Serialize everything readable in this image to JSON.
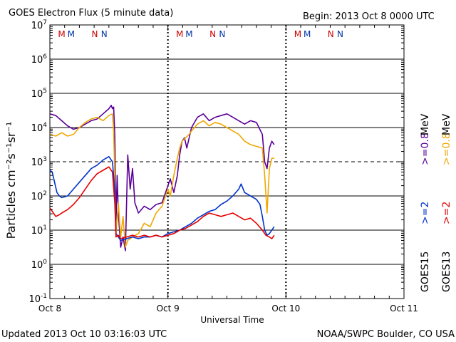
{
  "header": {
    "title": "GOES Electron Flux (5 minute data)",
    "begin": "Begin: 2013 Oct 8 0000 UTC"
  },
  "footer": {
    "updated": "Updated 2013 Oct 10 03:16:03 UTC",
    "credit": "NOAA/SWPC Boulder, CO USA"
  },
  "colors": {
    "goes15_08": "#5a0096",
    "goes13_08": "#f0a800",
    "goes15_2": "#0033cc",
    "goes13_2": "#e60000",
    "marker_m": "#cc0000",
    "marker_n_red": "#cc0000",
    "marker_n_blue": "#0033aa"
  },
  "markers": [
    {
      "day": 0.1,
      "letter": "M",
      "color": "red"
    },
    {
      "day": 0.18,
      "letter": "M",
      "color": "blue"
    },
    {
      "day": 0.38,
      "letter": "N",
      "color": "red"
    },
    {
      "day": 0.46,
      "letter": "N",
      "color": "blue"
    },
    {
      "day": 1.1,
      "letter": "M",
      "color": "red"
    },
    {
      "day": 1.18,
      "letter": "M",
      "color": "blue"
    },
    {
      "day": 1.38,
      "letter": "N",
      "color": "red"
    },
    {
      "day": 1.46,
      "letter": "N",
      "color": "blue"
    },
    {
      "day": 2.1,
      "letter": "M",
      "color": "red"
    },
    {
      "day": 2.18,
      "letter": "M",
      "color": "blue"
    },
    {
      "day": 2.38,
      "letter": "N",
      "color": "red"
    },
    {
      "day": 2.46,
      "letter": "N",
      "color": "blue"
    }
  ],
  "right_labels": {
    "goes15": "GOES15",
    "goes13": "GOES13",
    "ge2_15": ">=2",
    "ge2_13": ">=2",
    "ge08_15": ">=0.8",
    "ge08_13": ">=0.8",
    "mev": "MeV"
  },
  "chart_data": {
    "type": "line",
    "xlabel": "Universal Time",
    "ylabel": "Particles cm⁻²s⁻¹sr⁻¹",
    "x_unit": "days since 2013 Oct 8 0000 UTC",
    "xlim": [
      0,
      3
    ],
    "ylim_log10": [
      -1,
      7
    ],
    "y_scale": "log",
    "x_ticks": [
      {
        "at": 0,
        "label": "Oct 8"
      },
      {
        "at": 1,
        "label": "Oct 9"
      },
      {
        "at": 2,
        "label": "Oct 10"
      },
      {
        "at": 3,
        "label": "Oct 11"
      }
    ],
    "y_ticks": [
      {
        "exp": 7,
        "label": "10^7"
      },
      {
        "exp": 6,
        "label": "10^6"
      },
      {
        "exp": 5,
        "label": "10^5"
      },
      {
        "exp": 4,
        "label": "10^4"
      },
      {
        "exp": 3,
        "label": "10^3"
      },
      {
        "exp": 2,
        "label": "10^2"
      },
      {
        "exp": 1,
        "label": "10^1"
      },
      {
        "exp": 0,
        "label": "10^0"
      },
      {
        "exp": -1,
        "label": "10^-1"
      }
    ],
    "reference_dashed_log10": 3,
    "series": [
      {
        "name": "GOES15 >=0.8 MeV",
        "color": "#5a0096",
        "points": [
          [
            0.0,
            4.4
          ],
          [
            0.05,
            4.35
          ],
          [
            0.1,
            4.2
          ],
          [
            0.15,
            4.05
          ],
          [
            0.2,
            3.95
          ],
          [
            0.25,
            4.0
          ],
          [
            0.3,
            4.1
          ],
          [
            0.35,
            4.2
          ],
          [
            0.4,
            4.25
          ],
          [
            0.45,
            4.4
          ],
          [
            0.5,
            4.55
          ],
          [
            0.52,
            4.65
          ],
          [
            0.53,
            4.55
          ],
          [
            0.54,
            4.6
          ],
          [
            0.55,
            3.8
          ],
          [
            0.56,
            1.2
          ],
          [
            0.57,
            2.6
          ],
          [
            0.58,
            1.5
          ],
          [
            0.6,
            0.5
          ],
          [
            0.62,
            0.8
          ],
          [
            0.64,
            0.4
          ],
          [
            0.66,
            3.2
          ],
          [
            0.68,
            2.2
          ],
          [
            0.7,
            2.8
          ],
          [
            0.72,
            1.8
          ],
          [
            0.75,
            1.5
          ],
          [
            0.8,
            1.7
          ],
          [
            0.85,
            1.6
          ],
          [
            0.9,
            1.75
          ],
          [
            0.95,
            1.8
          ],
          [
            1.0,
            2.3
          ],
          [
            1.02,
            2.5
          ],
          [
            1.05,
            2.1
          ],
          [
            1.08,
            2.6
          ],
          [
            1.1,
            3.2
          ],
          [
            1.12,
            3.6
          ],
          [
            1.14,
            3.7
          ],
          [
            1.16,
            3.4
          ],
          [
            1.2,
            4.0
          ],
          [
            1.25,
            4.3
          ],
          [
            1.3,
            4.4
          ],
          [
            1.35,
            4.2
          ],
          [
            1.4,
            4.3
          ],
          [
            1.45,
            4.35
          ],
          [
            1.5,
            4.4
          ],
          [
            1.55,
            4.3
          ],
          [
            1.6,
            4.2
          ],
          [
            1.65,
            4.1
          ],
          [
            1.7,
            4.2
          ],
          [
            1.75,
            4.15
          ],
          [
            1.8,
            3.8
          ],
          [
            1.82,
            3.0
          ],
          [
            1.84,
            2.8
          ],
          [
            1.86,
            3.4
          ],
          [
            1.88,
            3.6
          ],
          [
            1.9,
            3.5
          ]
        ]
      },
      {
        "name": "GOES13 >=0.8 MeV",
        "color": "#f0a800",
        "points": [
          [
            0.0,
            3.8
          ],
          [
            0.05,
            3.75
          ],
          [
            0.1,
            3.85
          ],
          [
            0.15,
            3.75
          ],
          [
            0.2,
            3.8
          ],
          [
            0.25,
            4.0
          ],
          [
            0.3,
            4.15
          ],
          [
            0.35,
            4.25
          ],
          [
            0.4,
            4.3
          ],
          [
            0.45,
            4.2
          ],
          [
            0.5,
            4.35
          ],
          [
            0.53,
            4.4
          ],
          [
            0.54,
            3.9
          ],
          [
            0.55,
            2.6
          ],
          [
            0.56,
            0.9
          ],
          [
            0.58,
            1.8
          ],
          [
            0.6,
            0.8
          ],
          [
            0.62,
            1.4
          ],
          [
            0.64,
            0.5
          ],
          [
            0.66,
            0.7
          ],
          [
            0.7,
            0.8
          ],
          [
            0.75,
            0.9
          ],
          [
            0.8,
            1.2
          ],
          [
            0.85,
            1.1
          ],
          [
            0.9,
            1.5
          ],
          [
            0.95,
            1.7
          ],
          [
            1.0,
            2.2
          ],
          [
            1.02,
            2.0
          ],
          [
            1.05,
            2.6
          ],
          [
            1.08,
            3.1
          ],
          [
            1.1,
            3.4
          ],
          [
            1.12,
            3.6
          ],
          [
            1.15,
            3.7
          ],
          [
            1.18,
            3.8
          ],
          [
            1.2,
            3.9
          ],
          [
            1.25,
            4.1
          ],
          [
            1.3,
            4.2
          ],
          [
            1.35,
            4.05
          ],
          [
            1.4,
            4.15
          ],
          [
            1.45,
            4.1
          ],
          [
            1.5,
            4.0
          ],
          [
            1.55,
            3.9
          ],
          [
            1.6,
            3.8
          ],
          [
            1.65,
            3.6
          ],
          [
            1.7,
            3.5
          ],
          [
            1.75,
            3.45
          ],
          [
            1.8,
            3.4
          ],
          [
            1.82,
            2.6
          ],
          [
            1.84,
            1.5
          ],
          [
            1.86,
            2.8
          ],
          [
            1.88,
            3.1
          ],
          [
            1.9,
            3.1
          ]
        ]
      },
      {
        "name": "GOES15 >=2 MeV",
        "color": "#0033cc",
        "points": [
          [
            0.0,
            2.75
          ],
          [
            0.02,
            2.7
          ],
          [
            0.04,
            2.4
          ],
          [
            0.06,
            2.1
          ],
          [
            0.08,
            2.0
          ],
          [
            0.1,
            1.95
          ],
          [
            0.15,
            2.0
          ],
          [
            0.2,
            2.2
          ],
          [
            0.25,
            2.4
          ],
          [
            0.3,
            2.6
          ],
          [
            0.35,
            2.8
          ],
          [
            0.4,
            2.9
          ],
          [
            0.45,
            3.05
          ],
          [
            0.5,
            3.15
          ],
          [
            0.53,
            3.0
          ],
          [
            0.55,
            2.2
          ],
          [
            0.56,
            0.9
          ],
          [
            0.58,
            0.8
          ],
          [
            0.6,
            0.7
          ],
          [
            0.65,
            0.75
          ],
          [
            0.7,
            0.8
          ],
          [
            0.75,
            0.75
          ],
          [
            0.8,
            0.8
          ],
          [
            0.85,
            0.8
          ],
          [
            0.9,
            0.85
          ],
          [
            0.95,
            0.8
          ],
          [
            1.0,
            0.9
          ],
          [
            1.05,
            0.95
          ],
          [
            1.1,
            1.0
          ],
          [
            1.15,
            1.1
          ],
          [
            1.2,
            1.2
          ],
          [
            1.25,
            1.35
          ],
          [
            1.3,
            1.45
          ],
          [
            1.35,
            1.55
          ],
          [
            1.4,
            1.6
          ],
          [
            1.45,
            1.75
          ],
          [
            1.5,
            1.85
          ],
          [
            1.55,
            2.0
          ],
          [
            1.6,
            2.2
          ],
          [
            1.62,
            2.35
          ],
          [
            1.65,
            2.1
          ],
          [
            1.7,
            2.0
          ],
          [
            1.75,
            1.9
          ],
          [
            1.78,
            1.75
          ],
          [
            1.8,
            1.4
          ],
          [
            1.82,
            1.0
          ],
          [
            1.84,
            0.85
          ],
          [
            1.86,
            0.9
          ],
          [
            1.88,
            1.0
          ],
          [
            1.9,
            1.1
          ]
        ]
      },
      {
        "name": "GOES13 >=2 MeV",
        "color": "#e60000",
        "points": [
          [
            0.0,
            1.65
          ],
          [
            0.03,
            1.5
          ],
          [
            0.05,
            1.4
          ],
          [
            0.08,
            1.45
          ],
          [
            0.1,
            1.5
          ],
          [
            0.15,
            1.6
          ],
          [
            0.2,
            1.75
          ],
          [
            0.25,
            1.95
          ],
          [
            0.3,
            2.2
          ],
          [
            0.35,
            2.45
          ],
          [
            0.4,
            2.65
          ],
          [
            0.45,
            2.75
          ],
          [
            0.5,
            2.85
          ],
          [
            0.53,
            2.7
          ],
          [
            0.55,
            1.8
          ],
          [
            0.56,
            0.8
          ],
          [
            0.58,
            0.85
          ],
          [
            0.6,
            0.75
          ],
          [
            0.65,
            0.8
          ],
          [
            0.7,
            0.85
          ],
          [
            0.75,
            0.8
          ],
          [
            0.8,
            0.85
          ],
          [
            0.85,
            0.8
          ],
          [
            0.9,
            0.85
          ],
          [
            0.95,
            0.8
          ],
          [
            1.0,
            0.85
          ],
          [
            1.05,
            0.9
          ],
          [
            1.1,
            1.0
          ],
          [
            1.15,
            1.05
          ],
          [
            1.2,
            1.15
          ],
          [
            1.25,
            1.25
          ],
          [
            1.3,
            1.4
          ],
          [
            1.35,
            1.5
          ],
          [
            1.4,
            1.45
          ],
          [
            1.45,
            1.4
          ],
          [
            1.5,
            1.45
          ],
          [
            1.55,
            1.5
          ],
          [
            1.6,
            1.4
          ],
          [
            1.65,
            1.3
          ],
          [
            1.7,
            1.35
          ],
          [
            1.75,
            1.2
          ],
          [
            1.8,
            1.0
          ],
          [
            1.83,
            0.85
          ],
          [
            1.86,
            0.8
          ],
          [
            1.88,
            0.75
          ],
          [
            1.9,
            0.85
          ]
        ]
      }
    ]
  }
}
